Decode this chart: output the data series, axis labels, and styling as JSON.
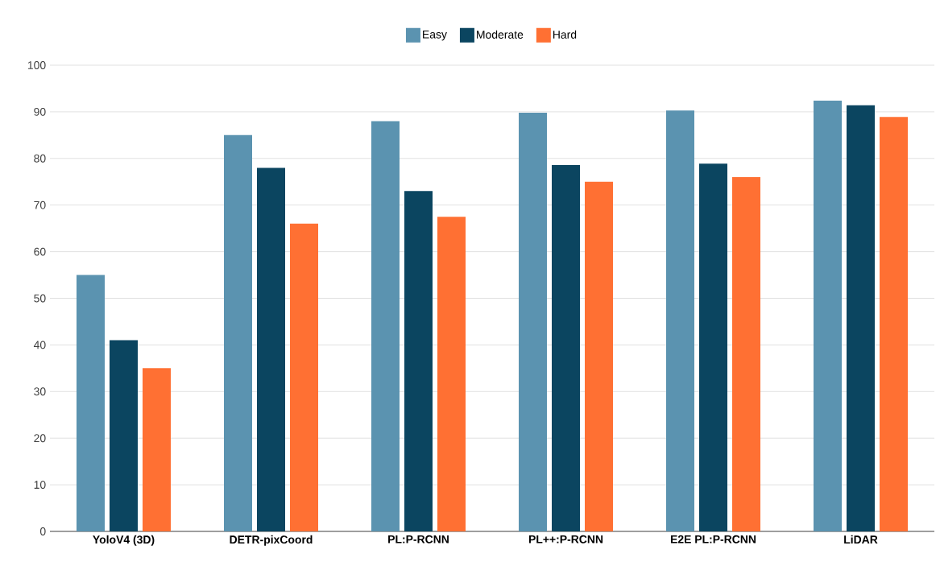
{
  "chart_data": {
    "type": "bar",
    "categories": [
      "YoloV4 (3D)",
      "DETR-pixCoord",
      "PL:P-RCNN",
      "PL++:P-RCNN",
      "E2E PL:P-RCNN",
      "LiDAR"
    ],
    "series": [
      {
        "name": "Easy",
        "color": "#5b93b0",
        "values": [
          55,
          85,
          88,
          89.8,
          90.3,
          92.4
        ]
      },
      {
        "name": "Moderate",
        "color": "#0b4560",
        "values": [
          41,
          78,
          73,
          78.6,
          78.9,
          91.4
        ]
      },
      {
        "name": "Hard",
        "color": "#ff7033",
        "values": [
          35,
          66,
          67.5,
          75,
          76,
          88.9
        ]
      }
    ],
    "ylim": [
      0,
      100
    ],
    "yticks": [
      0,
      10,
      20,
      30,
      40,
      50,
      60,
      70,
      80,
      90,
      100
    ],
    "grid": "y",
    "legend": "top"
  }
}
